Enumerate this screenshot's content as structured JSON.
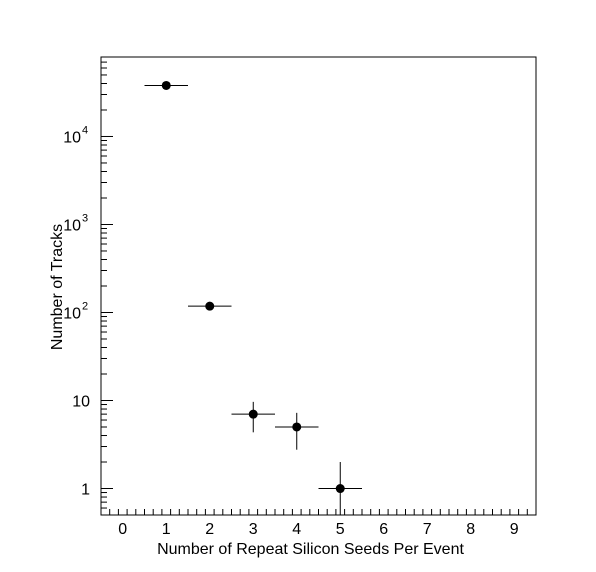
{
  "chart_data": {
    "type": "scatter",
    "xlabel": "Number of Repeat Silicon Seeds Per Event",
    "ylabel": "Number of Tracks",
    "x_range": [
      -0.5,
      9.5
    ],
    "y_range": [
      0.5,
      80000
    ],
    "y_scale": "log",
    "x_ticks": [
      "0",
      "1",
      "2",
      "3",
      "4",
      "5",
      "6",
      "7",
      "8",
      "9"
    ],
    "y_ticks": [
      {
        "base": "1",
        "exp": ""
      },
      {
        "base": "10",
        "exp": ""
      },
      {
        "base": "10",
        "exp": "2"
      },
      {
        "base": "10",
        "exp": "3"
      },
      {
        "base": "10",
        "exp": "4"
      }
    ],
    "grid": false,
    "points": [
      {
        "x": 1,
        "y": 38000,
        "xerr": 0.5,
        "yerr_low": 195,
        "yerr_high": 195
      },
      {
        "x": 2,
        "y": 118,
        "xerr": 0.5,
        "yerr_low": 10.9,
        "yerr_high": 10.9
      },
      {
        "x": 3,
        "y": 7,
        "xerr": 0.5,
        "yerr_low": 2.65,
        "yerr_high": 2.65
      },
      {
        "x": 4,
        "y": 5,
        "xerr": 0.5,
        "yerr_low": 2.24,
        "yerr_high": 2.24
      },
      {
        "x": 5,
        "y": 1,
        "xerr": 0.5,
        "yerr_low": 1,
        "yerr_high": 1
      }
    ]
  }
}
